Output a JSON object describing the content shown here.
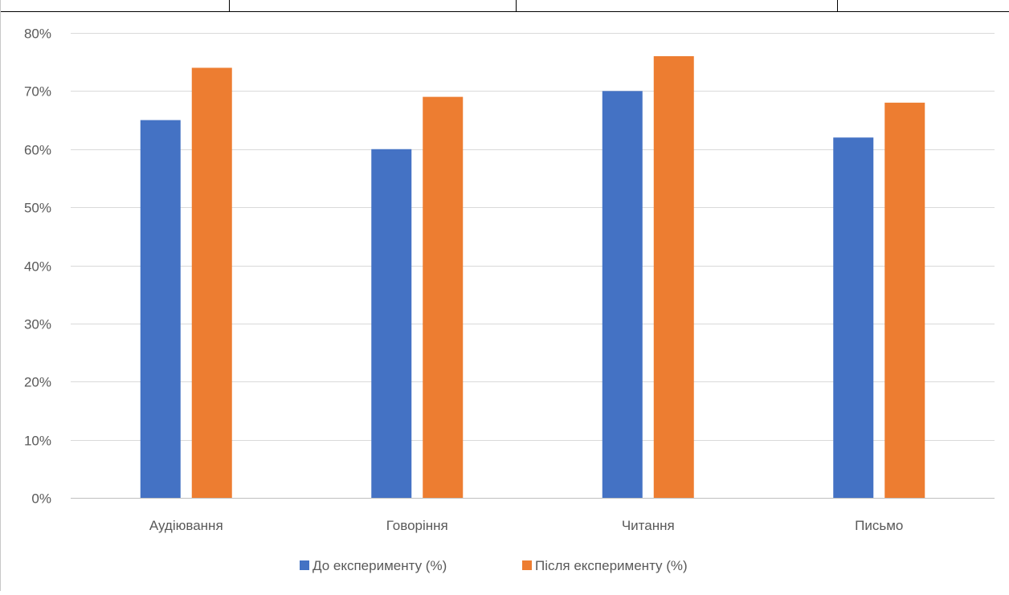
{
  "chart_data": {
    "type": "bar",
    "categories": [
      "Аудіювання",
      "Говоріння",
      "Читання",
      "Письмо"
    ],
    "series": [
      {
        "name": "До експерименту (%)",
        "color": "#4472c4",
        "values": [
          65,
          60,
          70,
          62
        ]
      },
      {
        "name": "Після експерименту (%)",
        "color": "#ed7d31",
        "values": [
          74,
          69,
          76,
          68
        ]
      }
    ],
    "y_ticks": [
      "0%",
      "10%",
      "20%",
      "30%",
      "40%",
      "50%",
      "60%",
      "70%",
      "80%"
    ],
    "ylim": [
      0,
      80
    ],
    "grid": true,
    "legend_position": "bottom"
  }
}
